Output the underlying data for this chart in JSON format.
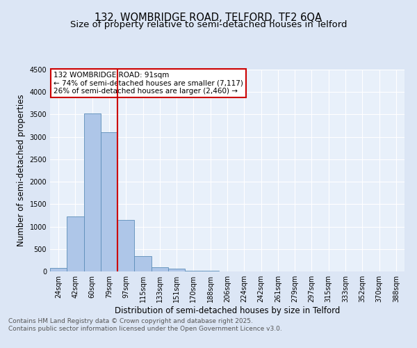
{
  "title1": "132, WOMBRIDGE ROAD, TELFORD, TF2 6QA",
  "title2": "Size of property relative to semi-detached houses in Telford",
  "xlabel": "Distribution of semi-detached houses by size in Telford",
  "ylabel": "Number of semi-detached properties",
  "bin_labels": [
    "24sqm",
    "42sqm",
    "60sqm",
    "79sqm",
    "97sqm",
    "115sqm",
    "133sqm",
    "151sqm",
    "170sqm",
    "188sqm",
    "206sqm",
    "224sqm",
    "242sqm",
    "261sqm",
    "279sqm",
    "297sqm",
    "315sqm",
    "333sqm",
    "352sqm",
    "370sqm",
    "388sqm"
  ],
  "bin_values": [
    75,
    1220,
    3520,
    3110,
    1150,
    340,
    100,
    55,
    20,
    8,
    3,
    1,
    0,
    0,
    0,
    0,
    0,
    0,
    0,
    0,
    0
  ],
  "bar_color": "#aec6e8",
  "bar_edge_color": "#5b8db8",
  "vline_color": "#cc0000",
  "annotation_text": "132 WOMBRIDGE ROAD: 91sqm\n← 74% of semi-detached houses are smaller (7,117)\n26% of semi-detached houses are larger (2,460) →",
  "annotation_box_color": "#ffffff",
  "annotation_box_edge": "#cc0000",
  "ylim": [
    0,
    4500
  ],
  "yticks": [
    0,
    500,
    1000,
    1500,
    2000,
    2500,
    3000,
    3500,
    4000,
    4500
  ],
  "bg_color": "#dce6f5",
  "plot_bg_color": "#e8f0fa",
  "footer_text": "Contains HM Land Registry data © Crown copyright and database right 2025.\nContains public sector information licensed under the Open Government Licence v3.0.",
  "grid_color": "#ffffff",
  "title_fontsize": 10.5,
  "subtitle_fontsize": 9.5,
  "axis_label_fontsize": 8.5,
  "tick_fontsize": 7,
  "footer_fontsize": 6.5,
  "vline_bin_index": 3.5
}
